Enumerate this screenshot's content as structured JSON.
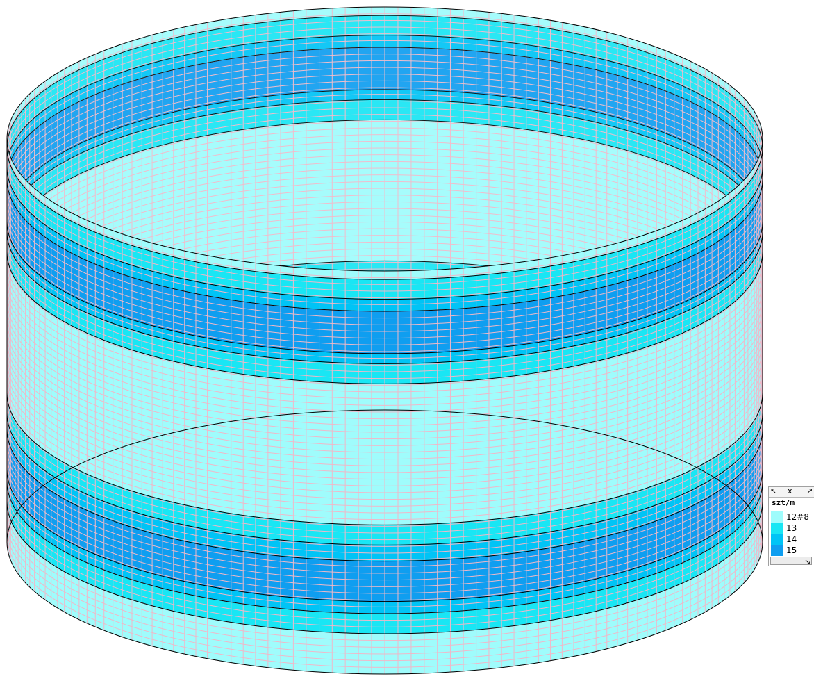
{
  "model": {
    "name": "cylinder-tank",
    "view": "isometric",
    "colors": {
      "background": "#ffffff",
      "mesh_line": "#f0b8c8",
      "bottom_mesh_line": "#c8c8c8",
      "outline": "#000000",
      "zone_12_8": "#9ffcfc",
      "zone_13": "#19e6f4",
      "zone_14": "#00c4f6",
      "zone_15": "#0f9ef0"
    }
  },
  "legend": {
    "unit": "szt/m",
    "toolbar": {
      "left_glyph": "↖",
      "close_glyph": "x",
      "right_glyph": "↗",
      "scroll_glyph": "↘"
    },
    "entries": [
      {
        "label": "12#8",
        "color": "#9ffcfc"
      },
      {
        "label": "13",
        "color": "#19e6f4"
      },
      {
        "label": "14",
        "color": "#00c4f6"
      },
      {
        "label": "15",
        "color": "#0f9ef0"
      }
    ]
  }
}
